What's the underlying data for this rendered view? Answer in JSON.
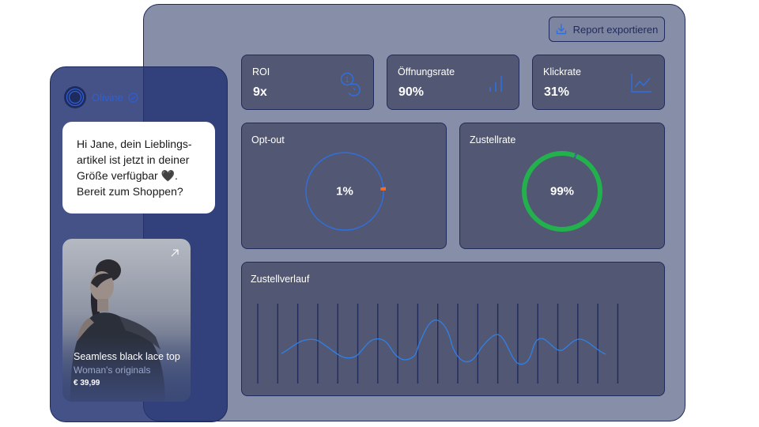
{
  "export_button": {
    "label": "Report exportieren",
    "icon": "download-icon"
  },
  "kpis": [
    {
      "label": "ROI",
      "value": "9x",
      "icon": "coins-icon"
    },
    {
      "label": "Öffnungsrate",
      "value": "90%",
      "icon": "bar-chart-icon"
    },
    {
      "label": "Klickrate",
      "value": "31%",
      "icon": "line-chart-icon"
    }
  ],
  "opt_out": {
    "label": "Opt-out",
    "value": "1%",
    "fraction": 0.01,
    "accent": "#ff6a1a",
    "ring": "#2f6fe0"
  },
  "delivery": {
    "label": "Zustellrate",
    "value": "99%",
    "fraction": 0.99,
    "accent": "#22b14c",
    "ring": "#2f6fe0"
  },
  "history": {
    "label": "Zustellverlauf",
    "bar_count": 19,
    "bar_color": "#1f2b5c",
    "line_color": "#2f80e8"
  },
  "chat": {
    "brand_name": "Olivine",
    "message_lines": [
      "Hi Jane, dein Lieblings-",
      "artikel ist jetzt in deiner",
      "Größe verfügbar 🖤.",
      "Bereit zum Shoppen?"
    ],
    "product": {
      "title": "Seamless black lace top",
      "subtitle": "Woman's originals",
      "price": "€ 39,99"
    }
  }
}
